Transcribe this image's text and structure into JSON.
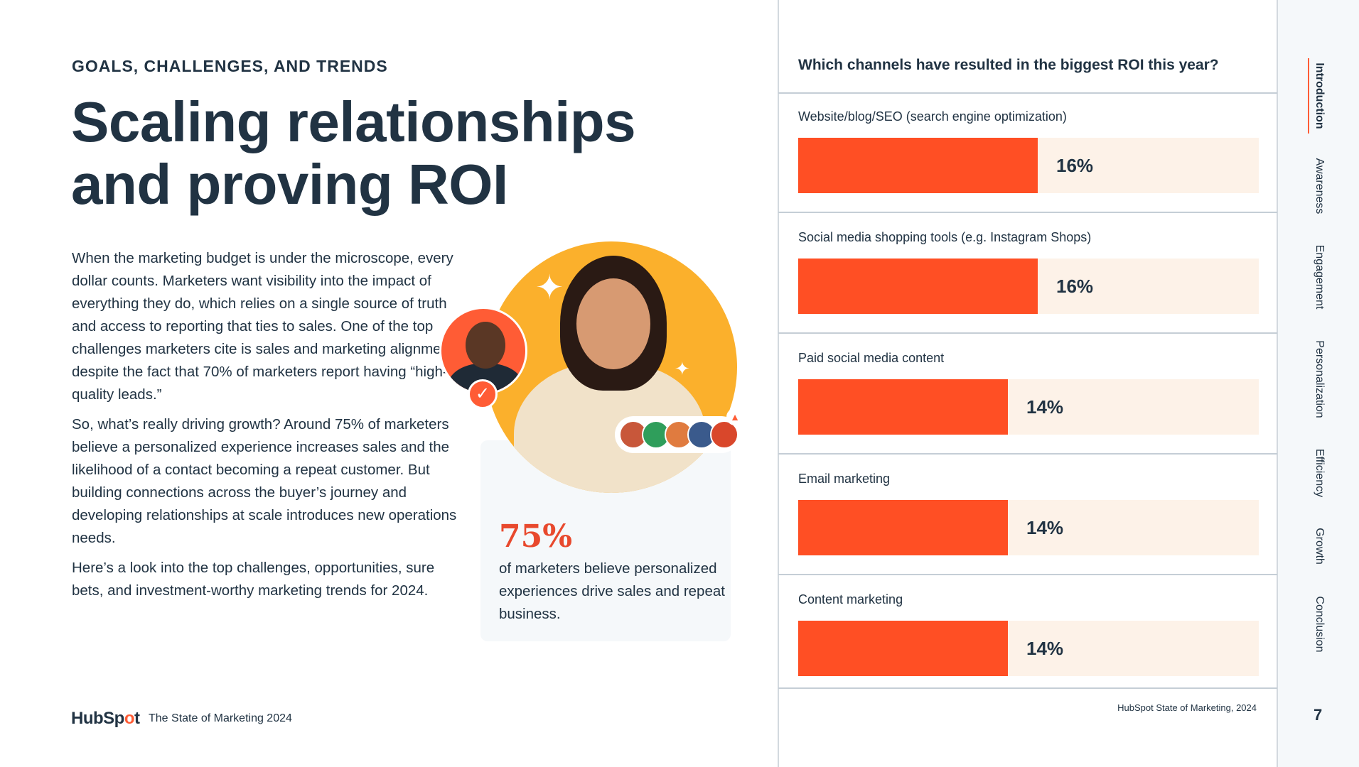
{
  "header": {
    "eyebrow": "GOALS, CHALLENGES, AND TRENDS",
    "title": "Scaling relationships and proving ROI"
  },
  "body": {
    "paragraphs": [
      "When the marketing budget is under the microscope, every dollar counts. Marketers want visibility into the impact of everything they do, which relies on a single source of truth and access to reporting that ties to sales. One of the top challenges marketers cite is sales and marketing alignment, despite the fact that 70% of marketers report having “high-quality leads.”",
      "So, what’s really driving growth? Around 75% of marketers believe a personalized experience increases sales and the likelihood of a contact becoming a repeat customer. But building connections across the buyer’s journey and developing relationships at scale introduces new operations needs.",
      "Here’s a look into the top challenges, opportunities, sure bets, and investment-worthy marketing trends for 2024."
    ]
  },
  "stat": {
    "number": "75%",
    "text": "of marketers believe personalized experiences drive sales and repeat business."
  },
  "footer": {
    "brand_prefix": "HubSp",
    "brand_o": "o",
    "brand_suffix": "t",
    "title": "The State of Marketing 2024"
  },
  "chart": {
    "question": "Which channels have resulted in the biggest ROI this year?",
    "source": "HubSpot State of Marketing, 2024"
  },
  "chart_data": {
    "type": "bar",
    "title": "Which channels have resulted in the biggest ROI this year?",
    "categories": [
      "Website/blog/SEO (search engine optimization)",
      "Social media shopping tools (e.g. Instagram Shops)",
      "Paid social media content",
      "Email marketing",
      "Content marketing"
    ],
    "values": [
      16,
      16,
      14,
      14,
      14
    ],
    "value_labels": [
      "16%",
      "16%",
      "14%",
      "14%",
      "14%"
    ],
    "unit": "%",
    "xlim": [
      0,
      100
    ],
    "orientation": "horizontal",
    "bar_color": "#ff4f24",
    "track_color": "#fdf2e8"
  },
  "nav": {
    "items": [
      "Introduction",
      "Awareness",
      "Engagement",
      "Personalization",
      "Efficiency",
      "Growth",
      "Conclusion"
    ],
    "active": "Introduction",
    "page_number": "7"
  },
  "colors": {
    "accent": "#ff5c35",
    "navy": "#213343",
    "yellow": "#fbb02c"
  }
}
